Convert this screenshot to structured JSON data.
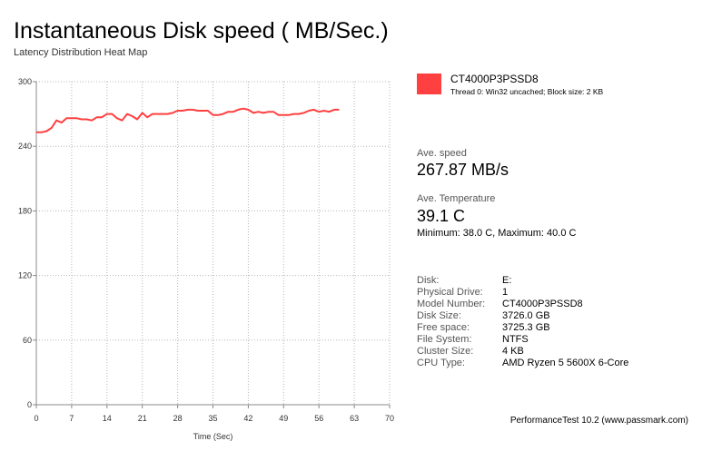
{
  "header": {
    "title": "Instantaneous Disk speed ( MB/Sec.)",
    "subtitle": "Latency Distribution Heat Map"
  },
  "legend": {
    "name": "CT4000P3PSSD8",
    "description": "Thread 0: Win32 uncached; Block size: 2 KB",
    "color": "#ff4040"
  },
  "stats": {
    "speed_label": "Ave. speed",
    "speed_value": "267.87 MB/s",
    "temp_label": "Ave. Temperature",
    "temp_value": "39.1 C",
    "temp_range": "Minimum: 38.0 C, Maximum: 40.0 C"
  },
  "disk_info": [
    {
      "label": "Disk:",
      "value": "E:"
    },
    {
      "label": "Physical Drive:",
      "value": "1"
    },
    {
      "label": "Model Number:",
      "value": "CT4000P3PSSD8"
    },
    {
      "label": "Disk Size:",
      "value": "3726.0 GB"
    },
    {
      "label": "Free space:",
      "value": "3725.3 GB"
    },
    {
      "label": "File System:",
      "value": "NTFS"
    },
    {
      "label": "Cluster Size:",
      "value": "4 KB"
    },
    {
      "label": "CPU Type:",
      "value": "AMD Ryzen 5 5600X 6-Core"
    }
  ],
  "footer": "PerformanceTest 10.2 (www.passmark.com)",
  "chart_data": {
    "type": "line",
    "title": "Instantaneous Disk speed ( MB/Sec.)",
    "subtitle": "Latency Distribution Heat Map",
    "xlabel": "Time (Sec)",
    "ylabel": "",
    "xlim": [
      0,
      70
    ],
    "ylim": [
      0,
      300
    ],
    "x_ticks": [
      "0",
      "7",
      "14",
      "21",
      "28",
      "35",
      "42",
      "49",
      "56",
      "63",
      "70"
    ],
    "x_tick_values": [
      0,
      7,
      14,
      21,
      28,
      35,
      42,
      49,
      56,
      63,
      70
    ],
    "y_ticks": [
      "0",
      "60",
      "120",
      "180",
      "240",
      "300"
    ],
    "y_tick_values": [
      0,
      60,
      120,
      180,
      240,
      300
    ],
    "grid": true,
    "legend_position": "right",
    "series": [
      {
        "name": "CT4000P3PSSD8",
        "color": "#ff4040",
        "x": [
          0,
          1,
          2,
          3,
          4,
          5,
          6,
          7,
          8,
          9,
          10,
          11,
          12,
          13,
          14,
          15,
          16,
          17,
          18,
          19,
          20,
          21,
          22,
          23,
          24,
          25,
          26,
          27,
          28,
          29,
          30,
          31,
          32,
          33,
          34,
          35,
          36,
          37,
          38,
          39,
          40,
          41,
          42,
          43,
          44,
          45,
          46,
          47,
          48,
          49,
          50,
          51,
          52,
          53,
          54,
          55,
          56,
          57,
          58,
          59,
          60
        ],
        "y": [
          253,
          253,
          254,
          257,
          264,
          262,
          266,
          266,
          266,
          265,
          265,
          264,
          267,
          267,
          270,
          270,
          266,
          264,
          270,
          268,
          265,
          271,
          267,
          270,
          270,
          270,
          270,
          271,
          273,
          273,
          274,
          274,
          273,
          273,
          273,
          269,
          269,
          270,
          272,
          272,
          274,
          275,
          274,
          271,
          272,
          271,
          272,
          272,
          269,
          269,
          269,
          270,
          270,
          271,
          273,
          274,
          272,
          273,
          272,
          274,
          274
        ]
      }
    ]
  }
}
